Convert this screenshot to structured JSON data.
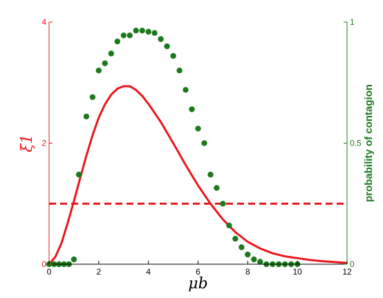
{
  "chart_data": {
    "type": "line",
    "xlabel": "μb",
    "xlim": [
      0,
      12
    ],
    "x_ticks": [
      "0",
      "2",
      "4",
      "6",
      "8",
      "10",
      "12"
    ],
    "y_left": {
      "label": "ξ1",
      "lim": [
        0,
        4
      ],
      "ticks": [
        "0",
        "2",
        "4"
      ],
      "color": "#e8161b"
    },
    "y_right": {
      "label": "probability of contagion",
      "lim": [
        0,
        1
      ],
      "ticks": [
        "0",
        "0.5",
        "1"
      ],
      "color": "#1c7a1c"
    },
    "series": [
      {
        "axis": "left",
        "style": "solid-line",
        "color": "#e8161b",
        "x": [
          0,
          0.25,
          0.5,
          0.75,
          1.0,
          1.25,
          1.5,
          1.75,
          2.0,
          2.25,
          2.5,
          2.75,
          3.0,
          3.25,
          3.5,
          3.75,
          4.0,
          4.5,
          5.0,
          5.5,
          6.0,
          6.5,
          7.0,
          7.5,
          8.0,
          8.5,
          9.0,
          9.5,
          10.0,
          10.5,
          11.0,
          11.5,
          12.0
        ],
        "y": [
          0,
          0.12,
          0.35,
          0.68,
          1.04,
          1.42,
          1.79,
          2.13,
          2.42,
          2.64,
          2.8,
          2.9,
          2.94,
          2.94,
          2.88,
          2.78,
          2.65,
          2.35,
          2.0,
          1.64,
          1.3,
          1.0,
          0.74,
          0.53,
          0.37,
          0.26,
          0.18,
          0.13,
          0.1,
          0.07,
          0.05,
          0.035,
          0.02
        ]
      },
      {
        "axis": "left",
        "style": "dashed-line",
        "color": "#e8161b",
        "x": [
          0,
          12
        ],
        "y": [
          1,
          1
        ]
      },
      {
        "axis": "right",
        "style": "dots",
        "color": "#1c7a1c",
        "x": [
          0,
          0.2,
          0.4,
          0.6,
          0.8,
          1.0,
          1.2,
          1.5,
          1.75,
          2.0,
          2.25,
          2.5,
          2.75,
          3.0,
          3.25,
          3.5,
          3.75,
          4.0,
          4.25,
          4.5,
          4.75,
          5.0,
          5.25,
          5.5,
          5.75,
          6.0,
          6.25,
          6.5,
          6.75,
          7.0,
          7.25,
          7.5,
          7.75,
          8.0,
          8.25,
          8.5,
          8.75,
          9.0,
          9.25,
          9.5,
          9.75,
          10.0
        ],
        "y": [
          0,
          0,
          0,
          0,
          0,
          0.02,
          0.37,
          0.61,
          0.69,
          0.8,
          0.83,
          0.87,
          0.92,
          0.945,
          0.945,
          0.965,
          0.965,
          0.96,
          0.955,
          0.93,
          0.9,
          0.86,
          0.8,
          0.72,
          0.64,
          0.56,
          0.5,
          0.37,
          0.315,
          0.25,
          0.16,
          0.105,
          0.07,
          0.04,
          0.02,
          0.01,
          0,
          0,
          0,
          0,
          0,
          0
        ]
      }
    ],
    "grid": false,
    "legend": "none"
  }
}
